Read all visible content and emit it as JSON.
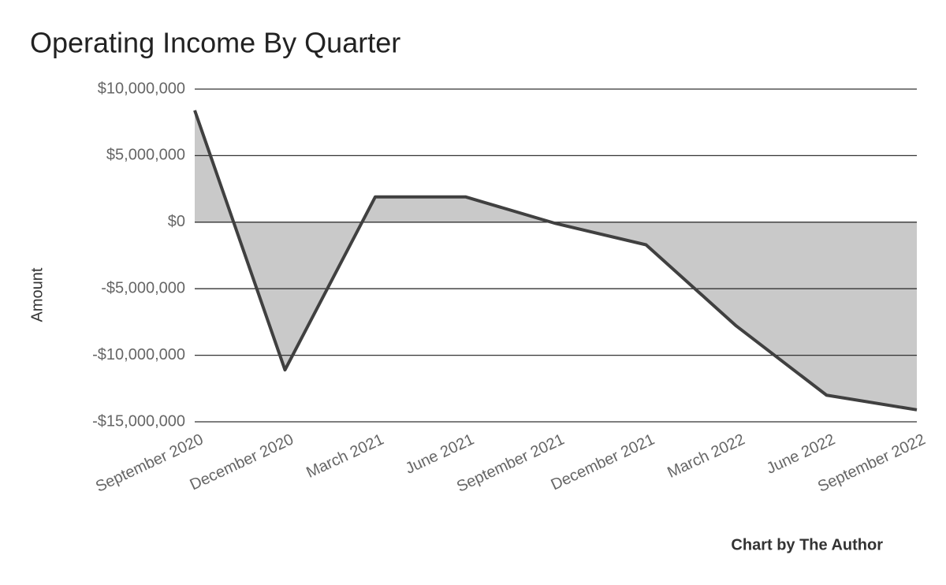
{
  "chart_data": {
    "type": "area",
    "title": "Operating Income By Quarter",
    "y_label": "Amount",
    "note": "Chart by The Author",
    "categories": [
      "September 2020",
      "December 2020",
      "March 2021",
      "June 2021",
      "September 2021",
      "December 2021",
      "March 2022",
      "June 2022",
      "September 2022"
    ],
    "values": [
      8400000,
      -11100000,
      1900000,
      1900000,
      -100000,
      -1700000,
      -7800000,
      -13000000,
      -14100000
    ],
    "color": "#404040",
    "fill": "#c9c9c9",
    "ylim": [
      -15000000,
      10000000
    ],
    "yticks": [
      {
        "value": -15000000,
        "label": "-$15,000,000"
      },
      {
        "value": -10000000,
        "label": "-$10,000,000"
      },
      {
        "value": -5000000,
        "label": "-$5,000,000"
      },
      {
        "value": 0,
        "label": "$0"
      },
      {
        "value": 5000000,
        "label": "$5,000,000"
      },
      {
        "value": 10000000,
        "label": "$10,000,000"
      }
    ],
    "grid": true
  }
}
